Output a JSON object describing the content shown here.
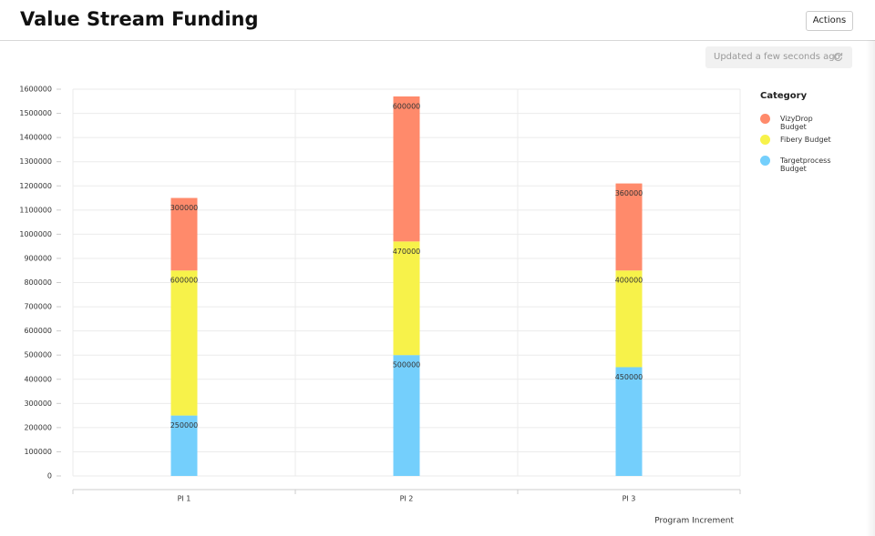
{
  "header": {
    "title": "Value Stream Funding",
    "action": "Actions",
    "status": "Updated a few seconds ago"
  },
  "chart_data": {
    "type": "stacked_bar",
    "x_label": "Program Increment",
    "legend_title": "Category",
    "categories": [
      "PI 1",
      "PI 2",
      "PI 3"
    ],
    "series": [
      {
        "name": "VizyDrop Budget",
        "color": "#ff8a6b",
        "values": [
          300000,
          600000,
          360000
        ]
      },
      {
        "name": "Fibery Budget",
        "color": "#f7f24a",
        "values": [
          600000,
          470000,
          400000
        ]
      },
      {
        "name": "Targetprocess Budget",
        "color": "#74cffc",
        "values": [
          250000,
          500000,
          450000
        ]
      }
    ],
    "ylim": [
      0,
      1600000
    ],
    "yticks": [
      0,
      100000,
      200000,
      300000,
      400000,
      500000,
      600000,
      700000,
      800000,
      900000,
      1000000,
      1100000,
      1200000,
      1300000,
      1400000,
      1500000,
      1600000
    ],
    "grid": true,
    "legend": "right"
  }
}
